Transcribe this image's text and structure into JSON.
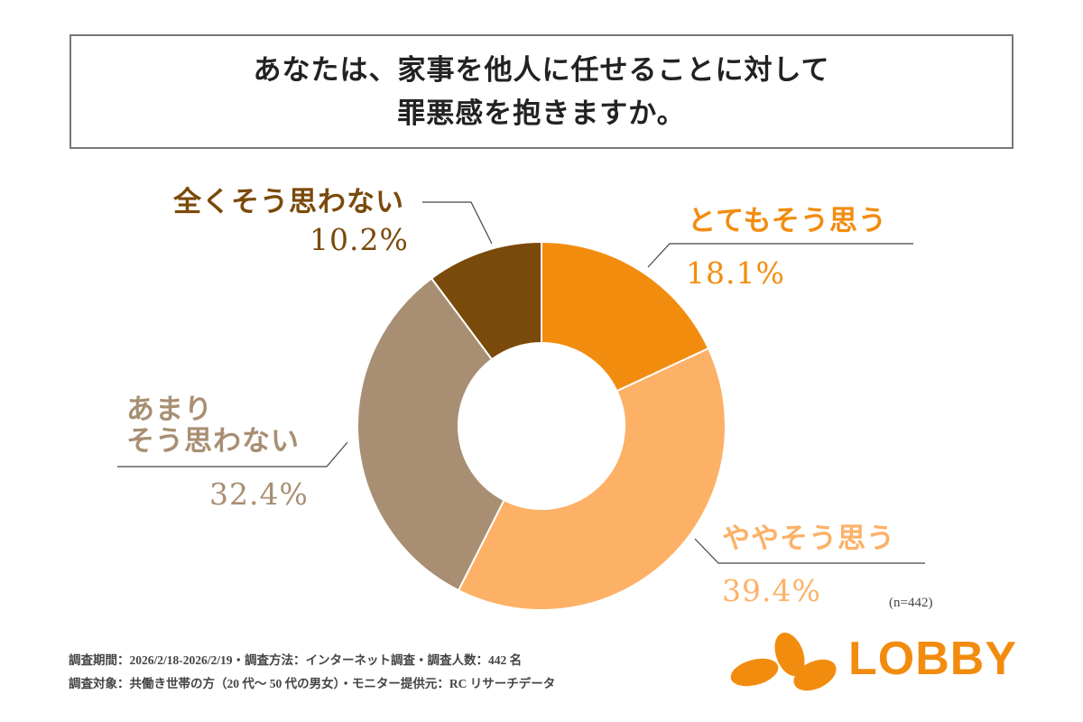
{
  "title": {
    "line1": "あなたは、家事を他人に任せることに対して",
    "line2": "罪悪感を抱きますか。"
  },
  "chart_data": {
    "type": "pie",
    "donut": true,
    "title": "あなたは、家事を他人に任せることに対して罪悪感を抱きますか。",
    "categories": [
      "とてもそう思う",
      "ややそう思う",
      "あまりそう思わない",
      "全くそう思わない"
    ],
    "values": [
      18.1,
      39.4,
      32.4,
      10.2
    ],
    "labels": [
      "18.1%",
      "39.4%",
      "32.4%",
      "10.2%"
    ],
    "colors": [
      "#F28C0F",
      "#FDB167",
      "#A88F73",
      "#7A4A0A"
    ],
    "n_label": "(n=442)"
  },
  "labels": {
    "c0": "とてもそう思う",
    "c1": "ややそう思う",
    "c2a": "あまり",
    "c2b": "そう思わない",
    "c3": "全くそう思わない"
  },
  "notes": {
    "line1": "調査期間：2026/2/18-2026/2/19・調査方法：インターネット調査・調査人数：442 名",
    "line2": "調査対象：共働き世帯の方（20 代〜 50 代の男女）・モニター提供元：RC リサーチデータ"
  },
  "logo": {
    "text": "LOBBY",
    "color": "#F28C0F"
  }
}
